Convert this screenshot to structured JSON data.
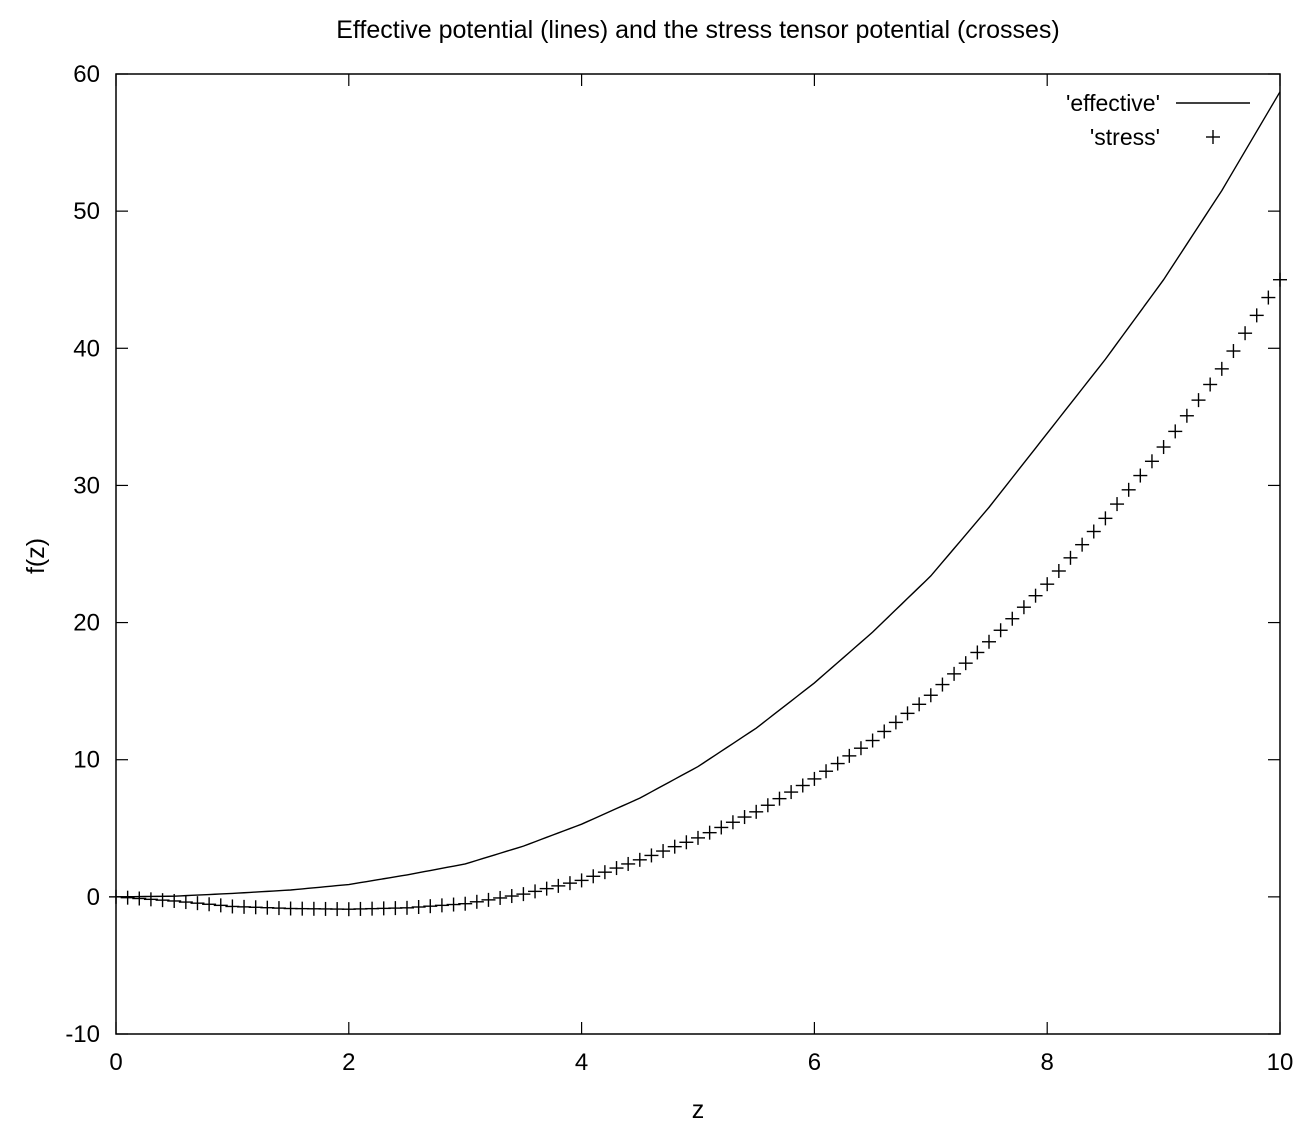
{
  "chart_data": {
    "type": "line",
    "title": "Effective potential (lines) and the stress tensor potential  (crosses)",
    "xlabel": "z",
    "ylabel": "f(z)",
    "xlim": [
      0,
      10
    ],
    "ylim": [
      -10,
      60
    ],
    "x_ticks": [
      "0",
      "2",
      "4",
      "6",
      "8",
      "10"
    ],
    "y_ticks": [
      "-10",
      "0",
      "10",
      "20",
      "30",
      "40",
      "50",
      "60"
    ],
    "grid": false,
    "legend_position": "top-right",
    "series": [
      {
        "name": "'effective'",
        "style": "line",
        "color": "#000000",
        "x": [
          0,
          0.5,
          1,
          1.5,
          2,
          2.5,
          3,
          3.5,
          4,
          4.5,
          5,
          5.5,
          6,
          6.5,
          7,
          7.5,
          8,
          8.5,
          9,
          9.5,
          10
        ],
        "y": [
          0,
          0.05,
          0.25,
          0.5,
          0.9,
          1.6,
          2.4,
          3.7,
          5.3,
          7.2,
          9.5,
          12.3,
          15.6,
          19.3,
          23.4,
          28.4,
          33.8,
          39.2,
          45.0,
          51.5,
          58.7
        ]
      },
      {
        "name": "'stress'",
        "style": "points",
        "marker": "+",
        "color": "#000000",
        "x": [
          0,
          0.5,
          1,
          1.5,
          2,
          2.5,
          3,
          3.5,
          4,
          4.5,
          5,
          5.5,
          6,
          6.5,
          7,
          7.5,
          8,
          8.5,
          9,
          9.5,
          10
        ],
        "y": [
          0,
          -0.3,
          -0.7,
          -0.85,
          -0.9,
          -0.8,
          -0.5,
          0.2,
          1.2,
          2.7,
          4.3,
          6.2,
          8.6,
          11.4,
          14.7,
          18.6,
          22.8,
          27.6,
          32.8,
          38.5,
          45.0
        ]
      }
    ]
  }
}
